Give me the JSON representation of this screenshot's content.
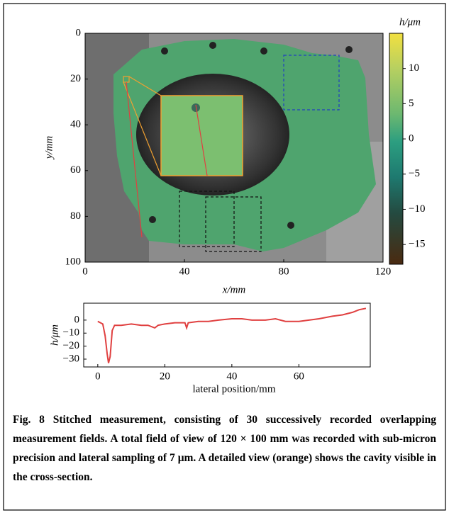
{
  "chart_data": [
    {
      "type": "image",
      "xlabel": "x/mm",
      "ylabel": "y/mm",
      "xlim": [
        0,
        120
      ],
      "ylim": [
        0,
        100
      ],
      "y_inverted": true,
      "xticks": [
        0,
        40,
        80,
        120
      ],
      "yticks": [
        0,
        20,
        40,
        60,
        80,
        100
      ],
      "colorbar": {
        "label": "h/μm",
        "lim": [
          -17.8,
          15
        ],
        "ticks": [
          {
            "value": 10,
            "label": "10"
          },
          {
            "value": 5,
            "label": "5"
          },
          {
            "value": 0,
            "label": "0"
          },
          {
            "value": -5,
            "label": "−5"
          },
          {
            "value": -10,
            "label": "−10"
          },
          {
            "value": -15,
            "label": "−15"
          }
        ]
      }
    },
    {
      "type": "line",
      "xlabel": "lateral position/mm",
      "ylabel": "h/μm",
      "xlim": [
        -4.2,
        81.3
      ],
      "ylim": [
        -36,
        13
      ],
      "xticks": [
        0,
        20,
        40,
        60
      ],
      "yticks": [
        0,
        {
          "value": -10,
          "label": "−10"
        },
        {
          "value": -20,
          "label": "−20"
        },
        {
          "value": -30,
          "label": "−30"
        }
      ],
      "series": [
        {
          "color": "#e04040",
          "x": [
            0,
            0.8,
            1.5,
            2.2,
            2.8,
            3.2,
            3.7,
            4.3,
            5,
            7,
            10,
            13,
            15,
            17,
            18,
            20,
            23,
            26,
            26.5,
            27,
            30,
            33,
            36,
            40,
            43,
            46,
            50,
            53,
            56,
            60,
            63,
            66,
            70,
            73,
            76,
            78,
            80
          ],
          "values": [
            -1,
            -2,
            -3,
            -12,
            -26,
            -33,
            -28,
            -8,
            -4,
            -4,
            -3,
            -4,
            -4,
            -6,
            -4,
            -3,
            -2,
            -2,
            -6,
            -2,
            -1,
            -1,
            0,
            1,
            1,
            0,
            0,
            1,
            -1,
            -1,
            0,
            1,
            3,
            4,
            6,
            8,
            9
          ]
        }
      ]
    }
  ],
  "caption": {
    "label": "Fig. 8",
    "text": "Stitched measurement, consisting of 30 successively recorded overlapping measurement fields. A total field of view of 120 × 100 mm was recorded with sub-micron precision and lateral sampling of 7 μm. A detailed view (orange) shows the cavity visible in the cross-section."
  }
}
